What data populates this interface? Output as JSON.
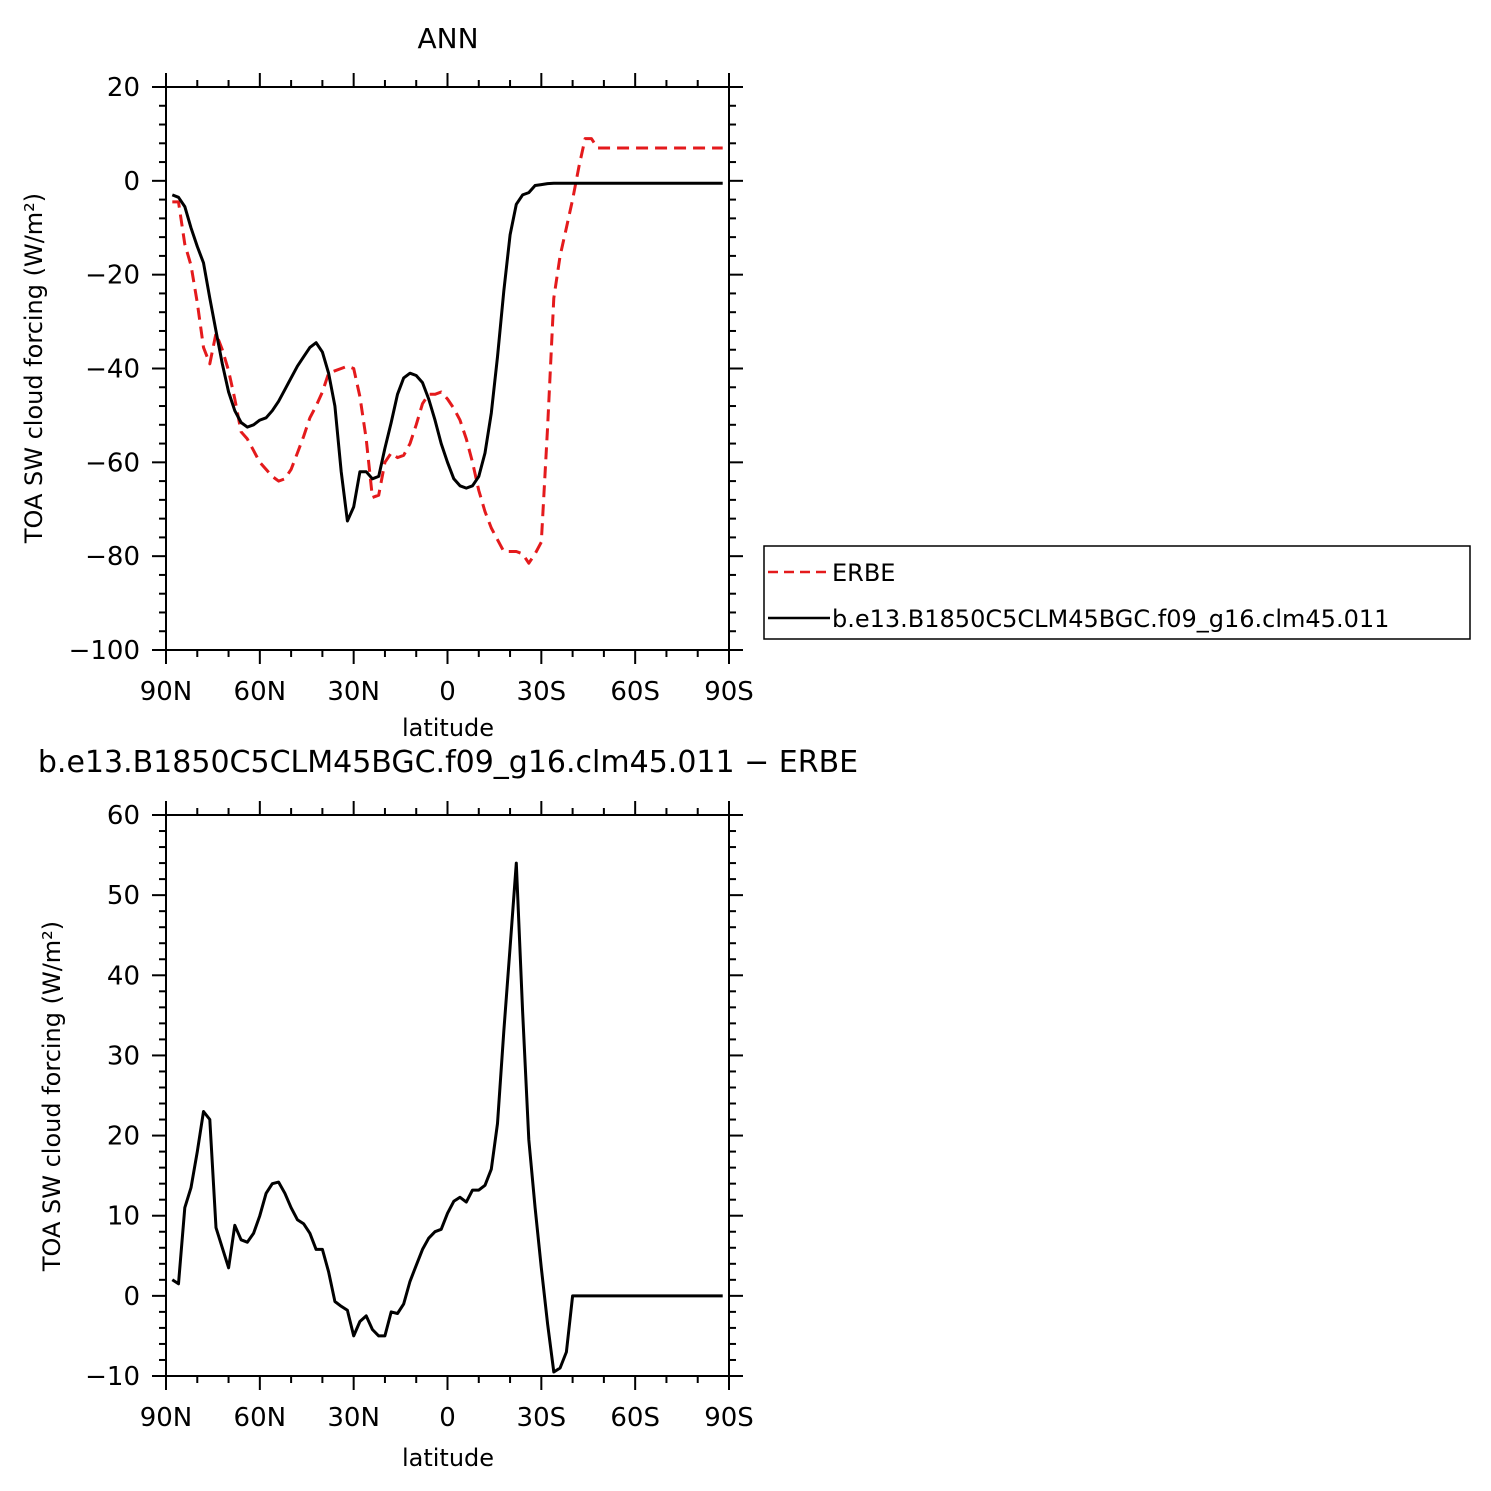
{
  "chart_data": [
    {
      "type": "line",
      "title": "ANN",
      "xlabel": "latitude",
      "ylabel": "TOA SW cloud forcing (W/m²)",
      "xlim": [
        90,
        -90
      ],
      "ylim": [
        -100,
        20
      ],
      "x_ticks": [
        90,
        60,
        30,
        0,
        -30,
        -60,
        -90
      ],
      "x_tick_labels": [
        "90N",
        "60N",
        "30N",
        "0",
        "30S",
        "60S",
        "90S"
      ],
      "y_ticks": [
        20,
        0,
        -20,
        -40,
        -60,
        -80,
        -100
      ],
      "y_tick_labels": [
        "20",
        "0",
        "−20",
        "−40",
        "−60",
        "−80",
        "−100"
      ],
      "legend_position": "right",
      "series": [
        {
          "name": "ERBE",
          "color": "#e41a1c",
          "dash": "dashed",
          "x": [
            88,
            86,
            84,
            82,
            80,
            78,
            76,
            74,
            72,
            70,
            68,
            66,
            64,
            62,
            60,
            58,
            56,
            54,
            52,
            50,
            48,
            46,
            44,
            42,
            40,
            38,
            36,
            34,
            32,
            30,
            28,
            26,
            24,
            22,
            20,
            18,
            16,
            14,
            12,
            10,
            8,
            6,
            4,
            2,
            0,
            -2,
            -4,
            -6,
            -8,
            -10,
            -12,
            -14,
            -16,
            -18,
            -20,
            -22,
            -24,
            -26,
            -28,
            -30,
            -32,
            -34,
            -36,
            -38,
            -40,
            -42,
            -44,
            -46,
            -48,
            -50,
            -52,
            -54,
            -56,
            -58,
            -60,
            -62,
            -64,
            -66,
            -68,
            -70,
            -72,
            -74,
            -76,
            -78,
            -80,
            -82,
            -84,
            -86,
            -88
          ],
          "values": [
            -4.5,
            -4.5,
            -13.5,
            -18,
            -26,
            -35.5,
            -39,
            -32.5,
            -36,
            -40.5,
            -46.5,
            -53.5,
            -55,
            -57.5,
            -60,
            -61.5,
            -63,
            -64,
            -63.5,
            -61.5,
            -58,
            -54.5,
            -50.5,
            -48,
            -45,
            -41,
            -40.5,
            -40,
            -39.5,
            -40,
            -46,
            -55,
            -67.5,
            -67,
            -60,
            -58,
            -59,
            -58.5,
            -56,
            -52,
            -47.5,
            -45.5,
            -45.5,
            -45,
            -46.5,
            -48.5,
            -51,
            -55,
            -60,
            -66,
            -70.5,
            -74,
            -76.5,
            -79,
            -79,
            -79,
            -79.5,
            -81.5,
            -79.5,
            -77,
            -52.5,
            -25,
            -16,
            -10,
            -4,
            3,
            9,
            9,
            7,
            7,
            7,
            7,
            7,
            7,
            7,
            7,
            7,
            7,
            7,
            7,
            7,
            7,
            7,
            7,
            7,
            7,
            7,
            7,
            7
          ]
        },
        {
          "name": "b.e13.B1850C5CLM45BGC.f09_g16.clm45.011",
          "color": "#000000",
          "dash": "solid",
          "x": [
            88,
            86,
            84,
            82,
            80,
            78,
            76,
            74,
            72,
            70,
            68,
            66,
            64,
            62,
            60,
            58,
            56,
            54,
            52,
            50,
            48,
            46,
            44,
            42,
            40,
            38,
            36,
            34,
            32,
            30,
            28,
            26,
            24,
            22,
            20,
            18,
            16,
            14,
            12,
            10,
            8,
            6,
            4,
            2,
            0,
            -2,
            -4,
            -6,
            -8,
            -10,
            -12,
            -14,
            -16,
            -18,
            -20,
            -22,
            -24,
            -26,
            -28,
            -30,
            -32,
            -34,
            -36,
            -38,
            -40,
            -42,
            -44,
            -46,
            -48,
            -50,
            -52,
            -54,
            -56,
            -58,
            -60,
            -62,
            -64,
            -66,
            -68,
            -70,
            -72,
            -74,
            -76,
            -78,
            -80,
            -82,
            -84,
            -86,
            -88
          ],
          "values": [
            -3,
            -3.5,
            -5.5,
            -10,
            -14,
            -17.5,
            -25,
            -32,
            -39,
            -45,
            -49,
            -51.5,
            -52.5,
            -52,
            -51,
            -50.5,
            -49,
            -47,
            -44.5,
            -42,
            -39.5,
            -37.5,
            -35.5,
            -34.5,
            -36.5,
            -41,
            -48,
            -62,
            -72.5,
            -69.5,
            -62,
            -62,
            -63.5,
            -63,
            -57,
            -51.5,
            -45.5,
            -42,
            -41,
            -41.5,
            -43,
            -46.5,
            -51,
            -56,
            -60,
            -63.5,
            -65,
            -65.5,
            -65,
            -63,
            -58,
            -49.5,
            -37.5,
            -23.5,
            -11.5,
            -5,
            -3,
            -2.5,
            -1,
            -0.8,
            -0.6,
            -0.5,
            -0.5,
            -0.5,
            -0.5,
            -0.5,
            -0.5,
            -0.5,
            -0.5,
            -0.5,
            -0.5,
            -0.5,
            -0.5,
            -0.5,
            -0.5,
            -0.5,
            -0.5,
            -0.5,
            -0.5,
            -0.5,
            -0.5,
            -0.5,
            -0.5,
            -0.5,
            -0.5,
            -0.5,
            -0.5,
            -0.5,
            -0.5
          ]
        }
      ]
    },
    {
      "type": "line",
      "title": "b.e13.B1850C5CLM45BGC.f09_g16.clm45.011  −  ERBE",
      "xlabel": "latitude",
      "ylabel": "TOA SW cloud forcing (W/m²)",
      "xlim": [
        90,
        -90
      ],
      "ylim": [
        -10,
        60
      ],
      "x_ticks": [
        90,
        60,
        30,
        0,
        -30,
        -60,
        -90
      ],
      "x_tick_labels": [
        "90N",
        "60N",
        "30N",
        "0",
        "30S",
        "60S",
        "90S"
      ],
      "y_ticks": [
        60,
        50,
        40,
        30,
        20,
        10,
        0,
        -10
      ],
      "y_tick_labels": [
        "60",
        "50",
        "40",
        "30",
        "20",
        "10",
        "0",
        "−10"
      ],
      "series": [
        {
          "color": "#000000",
          "dash": "solid",
          "x": [
            88,
            86,
            84,
            82,
            80,
            78,
            76,
            74,
            72,
            70,
            68,
            66,
            64,
            62,
            60,
            58,
            56,
            54,
            52,
            50,
            48,
            46,
            44,
            42,
            40,
            38,
            36,
            34,
            32,
            30,
            28,
            26,
            24,
            22,
            20,
            18,
            16,
            14,
            12,
            10,
            8,
            6,
            4,
            2,
            0,
            -2,
            -4,
            -6,
            -8,
            -10,
            -12,
            -14,
            -16,
            -18,
            -20,
            -22,
            -24,
            -26,
            -28,
            -30,
            -32,
            -34,
            -36,
            -38,
            -40,
            -42,
            -44,
            -46,
            -48,
            -50,
            -52,
            -54,
            -56,
            -58,
            -60,
            -62,
            -64,
            -66,
            -68,
            -70,
            -72,
            -74,
            -76,
            -78,
            -80,
            -82,
            -84,
            -86,
            -88
          ],
          "values": [
            2,
            1.5,
            11,
            13.5,
            18,
            23,
            22,
            8.5,
            6,
            3.5,
            8.8,
            7,
            6.7,
            7.8,
            10,
            12.8,
            14,
            14.2,
            12.8,
            11,
            9.5,
            9,
            7.8,
            5.8,
            5.8,
            3,
            -0.7,
            -1.3,
            -1.8,
            -5,
            -3.2,
            -2.5,
            -4.2,
            -5,
            -5,
            -2,
            -2.2,
            -1,
            1.8,
            3.8,
            5.8,
            7.2,
            8,
            8.3,
            10.3,
            11.8,
            12.3,
            11.7,
            13.2,
            13.2,
            13.8,
            15.8,
            21.5,
            33,
            43.5,
            54,
            35.5,
            19.5,
            11,
            3.5,
            -3.5,
            -9.5,
            -9,
            -7,
            0,
            0,
            0,
            0,
            0,
            0,
            0,
            0,
            0,
            0,
            0,
            0,
            0,
            0,
            0,
            0,
            0,
            0,
            0,
            0,
            0,
            0,
            0,
            0,
            0
          ]
        }
      ]
    }
  ]
}
